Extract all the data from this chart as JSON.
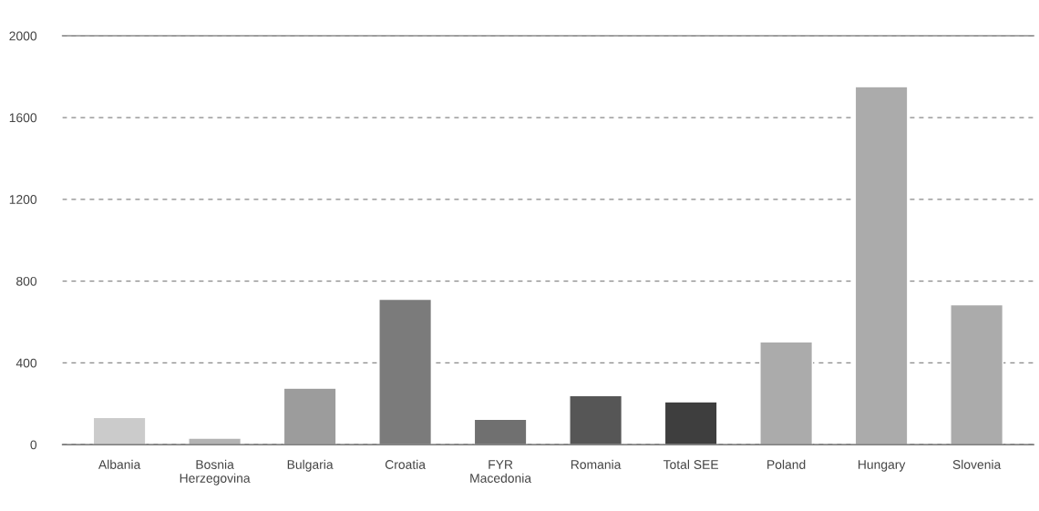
{
  "chart_data": {
    "type": "bar",
    "categories": [
      "Albania",
      "Bosnia\nHerzegovina",
      "Bulgaria",
      "Croatia",
      "FYR\nMacedonia",
      "Romania",
      "Total SEE",
      "Poland",
      "Hungary",
      "Slovenia"
    ],
    "values": [
      133,
      31,
      276,
      711,
      124,
      240,
      209,
      502,
      1751,
      684
    ],
    "colors": [
      "#cbcbcb",
      "#b3b3b3",
      "#9c9c9c",
      "#7b7b7b",
      "#707070",
      "#565656",
      "#3e3e3e",
      "#ababab",
      "#ababab",
      "#ababab"
    ],
    "ylim": [
      0,
      2000
    ],
    "yticks": [
      0,
      400,
      800,
      1200,
      1600,
      2000
    ],
    "grid": "y",
    "legend": false
  }
}
